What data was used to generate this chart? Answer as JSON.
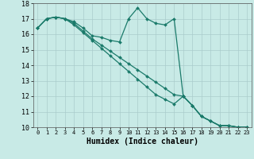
{
  "xlabel": "Humidex (Indice chaleur)",
  "background_color": "#c8eae6",
  "grid_color": "#aacccc",
  "line_color": "#1a7a6a",
  "xlim": [
    -0.5,
    23.5
  ],
  "ylim": [
    10,
    18
  ],
  "x_ticks": [
    0,
    1,
    2,
    3,
    4,
    5,
    6,
    7,
    8,
    9,
    10,
    11,
    12,
    13,
    14,
    15,
    16,
    17,
    18,
    19,
    20,
    21,
    22,
    23
  ],
  "y_ticks": [
    10,
    11,
    12,
    13,
    14,
    15,
    16,
    17,
    18
  ],
  "series": [
    {
      "x": [
        0,
        1,
        2,
        3,
        4,
        5,
        6,
        7,
        8,
        9,
        10,
        11,
        12,
        13,
        14,
        15,
        16,
        17,
        18,
        19,
        20,
        21,
        22,
        23
      ],
      "y": [
        16.4,
        17.0,
        17.1,
        17.0,
        16.8,
        16.4,
        15.9,
        15.8,
        15.6,
        15.5,
        17.0,
        17.7,
        17.0,
        16.7,
        16.6,
        17.0,
        12.0,
        11.4,
        10.7,
        10.4,
        10.1,
        10.1,
        10.0,
        10.0
      ]
    },
    {
      "x": [
        0,
        1,
        2,
        3,
        4,
        5,
        6,
        7,
        8,
        9,
        10,
        11,
        12,
        13,
        14,
        15,
        16,
        17,
        18,
        19,
        20,
        21,
        22,
        23
      ],
      "y": [
        16.4,
        17.0,
        17.1,
        17.0,
        16.7,
        16.2,
        15.7,
        15.3,
        14.9,
        14.5,
        14.1,
        13.7,
        13.3,
        12.9,
        12.5,
        12.1,
        12.0,
        11.4,
        10.7,
        10.4,
        10.1,
        10.1,
        10.0,
        10.0
      ]
    },
    {
      "x": [
        0,
        1,
        2,
        3,
        4,
        5,
        6,
        7,
        8,
        9,
        10,
        11,
        12,
        13,
        14,
        15,
        16,
        17,
        18,
        19,
        20,
        21,
        22,
        23
      ],
      "y": [
        16.4,
        17.0,
        17.1,
        17.0,
        16.6,
        16.1,
        15.6,
        15.1,
        14.6,
        14.1,
        13.6,
        13.1,
        12.6,
        12.1,
        11.8,
        11.5,
        12.0,
        11.4,
        10.7,
        10.4,
        10.1,
        10.1,
        10.0,
        10.0
      ]
    }
  ]
}
